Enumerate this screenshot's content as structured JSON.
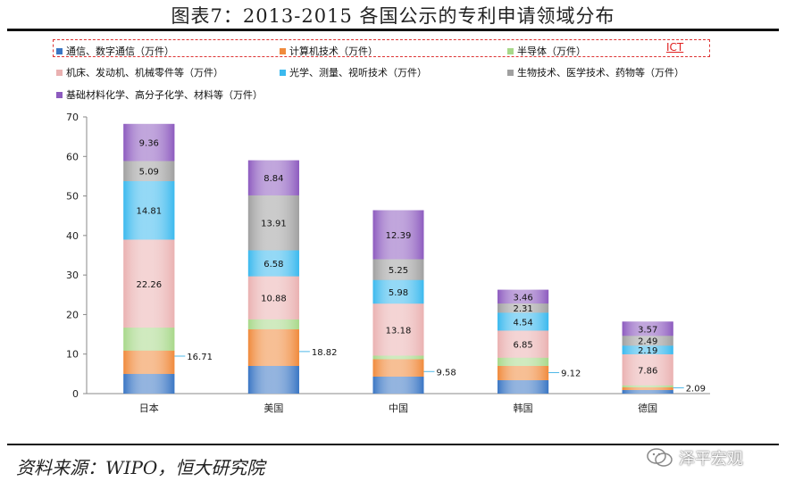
{
  "figure_title": "图表7：2013-2015 各国公示的专利申请领域分布",
  "legend_tag": "ICT",
  "source_text": "资料来源：WIPO，恒大研究院",
  "brand_text": "泽平宏观",
  "brand_icon": "wechat-icon",
  "chart_data": {
    "type": "bar",
    "stacked": true,
    "categories": [
      "日本",
      "美国",
      "中国",
      "韩国",
      "德国"
    ],
    "ylim": [
      0,
      70
    ],
    "yticks": [
      0,
      10,
      20,
      30,
      40,
      50,
      60,
      70
    ],
    "series": [
      {
        "name": "通信、数字通信（万件）",
        "color": "#3a76c4",
        "values": [
          5.0,
          7.0,
          4.3,
          3.4,
          0.9
        ]
      },
      {
        "name": "计算机技术（万件）",
        "color": "#f08a3c",
        "values": [
          5.9,
          9.3,
          4.4,
          3.6,
          0.7
        ]
      },
      {
        "name": "半导体（万件）",
        "color": "#a8d88a",
        "values": [
          5.8,
          2.5,
          0.9,
          2.1,
          0.5
        ]
      },
      {
        "name": "机床、发动机、机械零件等（万件）",
        "color": "#eab1b1",
        "values": [
          22.26,
          10.88,
          13.18,
          6.85,
          7.86
        ]
      },
      {
        "name": "光学、测量、视听技术（万件）",
        "color": "#3bb9ee",
        "values": [
          14.81,
          6.58,
          5.98,
          4.54,
          2.19
        ]
      },
      {
        "name": "生物技术、医学技术、药物等（万件）",
        "color": "#a0a0a0",
        "values": [
          5.09,
          13.91,
          5.25,
          2.31,
          2.49
        ]
      },
      {
        "name": "基础材料化学、高分子化学、材料等（万件）",
        "color": "#8d5bbf",
        "values": [
          9.36,
          8.84,
          12.39,
          3.46,
          3.57
        ]
      }
    ],
    "ict_totals": [
      16.71,
      18.82,
      9.58,
      9.12,
      2.09
    ],
    "data_labels": {
      "机床、发动机、机械零件等（万件）": [
        "22.26",
        "10.88",
        "13.18",
        "6.85",
        "7.86"
      ],
      "光学、测量、视听技术（万件）": [
        "14.81",
        "6.58",
        "5.98",
        "4.54",
        "2.19"
      ],
      "生物技术、医学技术、药物等（万件）": [
        "5.09",
        "13.91",
        "5.25",
        "2.31",
        "2.49"
      ],
      "基础材料化学、高分子化学、材料等（万件）": [
        "9.36",
        "8.84",
        "12.39",
        "3.46",
        "3.57"
      ]
    },
    "ict_labels": [
      "16.71",
      "18.82",
      "9.58",
      "9.12",
      "2.09"
    ],
    "grid": false,
    "legend_position": "top"
  }
}
